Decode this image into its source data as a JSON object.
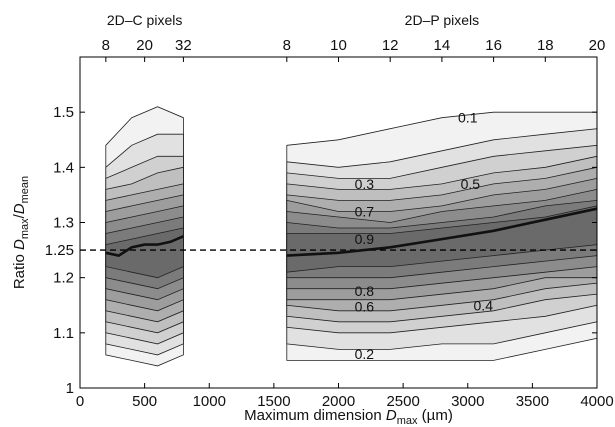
{
  "chart_data": {
    "type": "contour",
    "title": "",
    "xlabel": {
      "text": "Maximum dimension ",
      "symbol": "D",
      "subscript": "max",
      "unit": " (µm)"
    },
    "ylabel": {
      "prefix": "Ratio ",
      "num_symbol": "D",
      "num_sub": "max",
      "slash": "/",
      "den_symbol": "D",
      "den_sub": "mean"
    },
    "xlim": [
      0,
      4000
    ],
    "ylim": [
      1,
      1.6
    ],
    "x_ticks": [
      0,
      500,
      1000,
      1500,
      2000,
      2500,
      3000,
      3500,
      4000
    ],
    "x_tick_labels": [
      "0",
      "500",
      "1000",
      "1500",
      "2000",
      "2500",
      "3000",
      "3500",
      "4000"
    ],
    "y_ticks": [
      1,
      1.1,
      1.2,
      1.25,
      1.3,
      1.4,
      1.5
    ],
    "y_tick_labels": [
      "1",
      "1.1",
      "1.2",
      "1.25",
      "1.3",
      "1.4",
      "1.5"
    ],
    "top_axes": [
      {
        "title": "2D–C pixels",
        "ticks": [
          {
            "x": 200,
            "label": "8"
          },
          {
            "x": 500,
            "label": "20"
          },
          {
            "x": 800,
            "label": "32"
          }
        ]
      },
      {
        "title": "2D–P pixels",
        "ticks": [
          {
            "x": 1600,
            "label": "8"
          },
          {
            "x": 2000,
            "label": "10"
          },
          {
            "x": 2400,
            "label": "12"
          },
          {
            "x": 2800,
            "label": "14"
          },
          {
            "x": 3200,
            "label": "16"
          },
          {
            "x": 3600,
            "label": "18"
          },
          {
            "x": 4000,
            "label": "20"
          }
        ]
      }
    ],
    "reference_line": {
      "y": 1.25,
      "style": "dashed"
    },
    "contour_labels": [
      {
        "text": "0.1",
        "x": 3000,
        "y": 1.49
      },
      {
        "text": "0.3",
        "x": 2200,
        "y": 1.37
      },
      {
        "text": "0.5",
        "x": 3020,
        "y": 1.37
      },
      {
        "text": "0.7",
        "x": 2200,
        "y": 1.32
      },
      {
        "text": "0.9",
        "x": 2200,
        "y": 1.27
      },
      {
        "text": "0.8",
        "x": 2200,
        "y": 1.176
      },
      {
        "text": "0.6",
        "x": 2200,
        "y": 1.148
      },
      {
        "text": "0.4",
        "x": 3120,
        "y": 1.15
      },
      {
        "text": "0.2",
        "x": 2200,
        "y": 1.062
      }
    ],
    "regions": [
      {
        "name": "2D-C",
        "x": [
          200,
          400,
          600,
          800
        ],
        "levels": [
          0.1,
          0.2,
          0.3,
          0.4,
          0.5,
          0.6,
          0.7,
          0.8,
          0.9
        ],
        "bands": [
          {
            "low": [
              1.06,
              1.05,
              1.04,
              1.06
            ],
            "high": [
              1.44,
              1.49,
              1.51,
              1.49
            ]
          },
          {
            "low": [
              1.08,
              1.07,
              1.06,
              1.08
            ],
            "high": [
              1.4,
              1.44,
              1.46,
              1.46
            ]
          },
          {
            "low": [
              1.1,
              1.09,
              1.08,
              1.1
            ],
            "high": [
              1.38,
              1.4,
              1.42,
              1.42
            ]
          },
          {
            "low": [
              1.12,
              1.11,
              1.1,
              1.12
            ],
            "high": [
              1.36,
              1.37,
              1.39,
              1.4
            ]
          },
          {
            "low": [
              1.14,
              1.13,
              1.12,
              1.14
            ],
            "high": [
              1.34,
              1.35,
              1.36,
              1.37
            ]
          },
          {
            "low": [
              1.16,
              1.15,
              1.14,
              1.16
            ],
            "high": [
              1.32,
              1.33,
              1.34,
              1.35
            ]
          },
          {
            "low": [
              1.18,
              1.17,
              1.16,
              1.18
            ],
            "high": [
              1.3,
              1.31,
              1.32,
              1.33
            ]
          },
          {
            "low": [
              1.2,
              1.19,
              1.18,
              1.2
            ],
            "high": [
              1.28,
              1.29,
              1.3,
              1.31
            ]
          },
          {
            "low": [
              1.22,
              1.21,
              1.2,
              1.22
            ],
            "high": [
              1.26,
              1.27,
              1.28,
              1.29
            ]
          }
        ],
        "mode_line": {
          "x": [
            200,
            300,
            400,
            500,
            600,
            700,
            800
          ],
          "y": [
            1.245,
            1.24,
            1.255,
            1.26,
            1.26,
            1.265,
            1.275
          ]
        }
      },
      {
        "name": "2D-P",
        "x": [
          1600,
          2000,
          2400,
          2800,
          3200,
          3600,
          4000
        ],
        "levels": [
          0.1,
          0.2,
          0.3,
          0.4,
          0.5,
          0.6,
          0.7,
          0.8,
          0.9
        ],
        "bands": [
          {
            "low": [
              1.05,
              1.05,
              1.05,
              1.05,
              1.05,
              1.07,
              1.09
            ],
            "high": [
              1.44,
              1.45,
              1.47,
              1.49,
              1.5,
              1.5,
              1.5
            ]
          },
          {
            "low": [
              1.08,
              1.07,
              1.07,
              1.08,
              1.08,
              1.1,
              1.12
            ],
            "high": [
              1.41,
              1.4,
              1.41,
              1.43,
              1.45,
              1.46,
              1.47
            ]
          },
          {
            "low": [
              1.11,
              1.1,
              1.1,
              1.11,
              1.12,
              1.13,
              1.15
            ],
            "high": [
              1.39,
              1.38,
              1.38,
              1.4,
              1.42,
              1.43,
              1.44
            ]
          },
          {
            "low": [
              1.13,
              1.12,
              1.12,
              1.13,
              1.14,
              1.16,
              1.17
            ],
            "high": [
              1.37,
              1.36,
              1.36,
              1.37,
              1.39,
              1.4,
              1.42
            ]
          },
          {
            "low": [
              1.15,
              1.14,
              1.14,
              1.15,
              1.16,
              1.18,
              1.19
            ],
            "high": [
              1.35,
              1.34,
              1.34,
              1.35,
              1.37,
              1.38,
              1.4
            ]
          },
          {
            "low": [
              1.16,
              1.16,
              1.16,
              1.17,
              1.18,
              1.2,
              1.2
            ],
            "high": [
              1.34,
              1.32,
              1.32,
              1.33,
              1.35,
              1.36,
              1.38
            ]
          },
          {
            "low": [
              1.18,
              1.18,
              1.18,
              1.19,
              1.2,
              1.21,
              1.22
            ],
            "high": [
              1.32,
              1.31,
              1.3,
              1.32,
              1.33,
              1.34,
              1.36
            ]
          },
          {
            "low": [
              1.2,
              1.2,
              1.2,
              1.21,
              1.22,
              1.23,
              1.24
            ],
            "high": [
              1.3,
              1.29,
              1.29,
              1.3,
              1.31,
              1.33,
              1.34
            ]
          },
          {
            "low": [
              1.21,
              1.22,
              1.22,
              1.23,
              1.24,
              1.25,
              1.26
            ],
            "high": [
              1.28,
              1.28,
              1.28,
              1.29,
              1.3,
              1.31,
              1.33
            ]
          }
        ],
        "mode_line": {
          "x": [
            1600,
            2000,
            2400,
            2800,
            3200,
            3600,
            4000
          ],
          "y": [
            1.24,
            1.245,
            1.255,
            1.27,
            1.285,
            1.305,
            1.325
          ]
        }
      }
    ],
    "colors": {
      "axis": "#000000",
      "band_light": "#f2f2f2",
      "band_dark": "#6a6a6a",
      "contour_line": "#222222",
      "mode_line": "#111111"
    }
  }
}
